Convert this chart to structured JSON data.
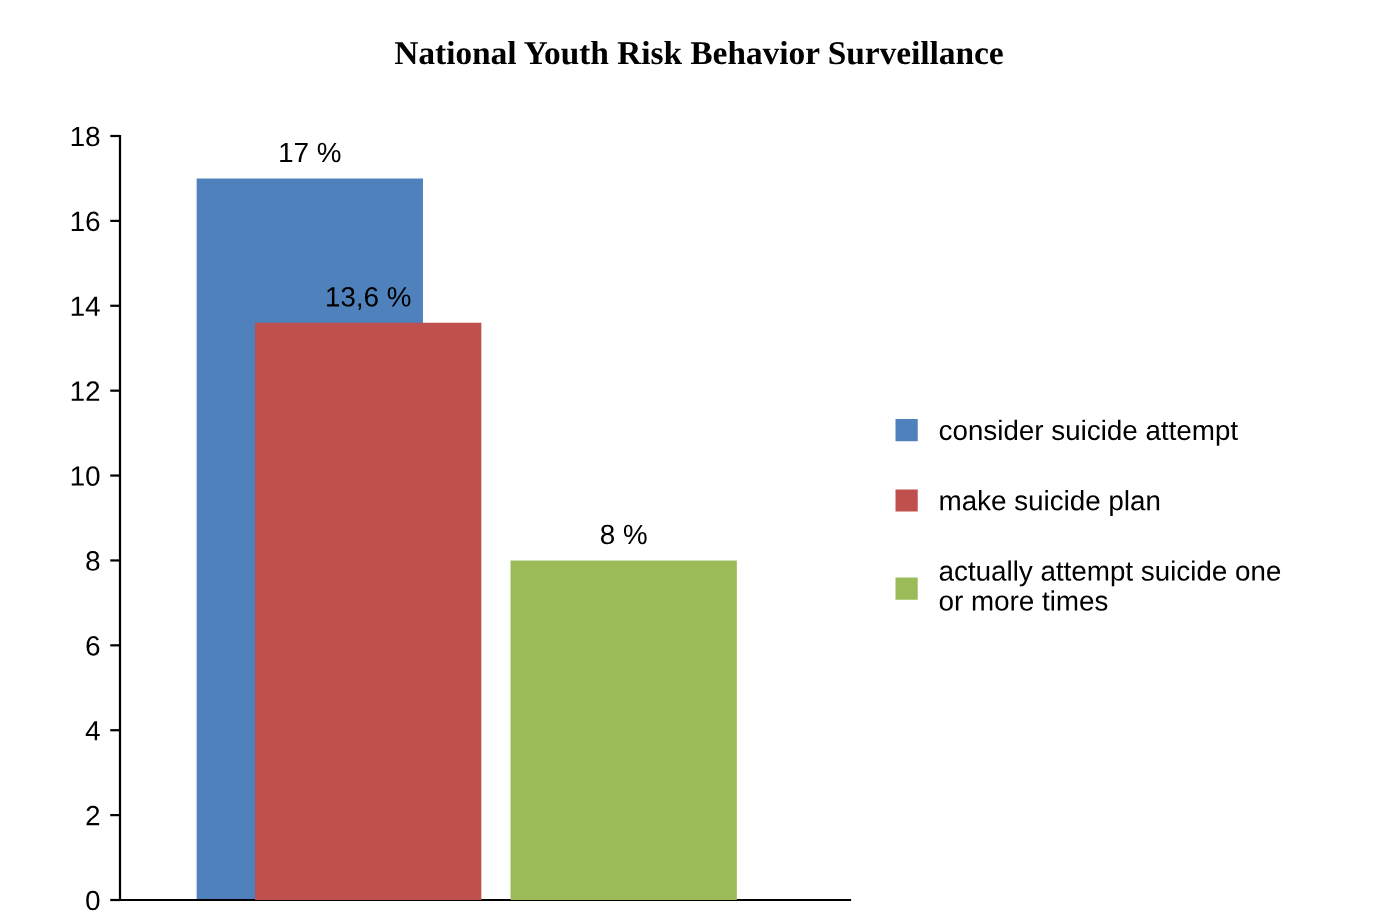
{
  "chart_data": {
    "type": "bar",
    "title": "National Youth Risk Behavior Surveillance",
    "categories": [
      null
    ],
    "series": [
      {
        "name": "consider suicide attempt",
        "color": "#4f81bd",
        "values": [
          17
        ],
        "value_labels": [
          "17 %"
        ]
      },
      {
        "name": "make suicide plan",
        "color": "#c0504d",
        "values": [
          13.6
        ],
        "value_labels": [
          "13,6 %"
        ]
      },
      {
        "name": "actually attempt suicide one or more times",
        "color": "#9bbb59",
        "values": [
          8
        ],
        "value_labels": [
          "8 %"
        ]
      }
    ],
    "ylim": [
      0,
      18
    ],
    "yticks": [
      0,
      2,
      4,
      6,
      8,
      10,
      12,
      14,
      16,
      18
    ],
    "grid": false,
    "legend": "right"
  }
}
